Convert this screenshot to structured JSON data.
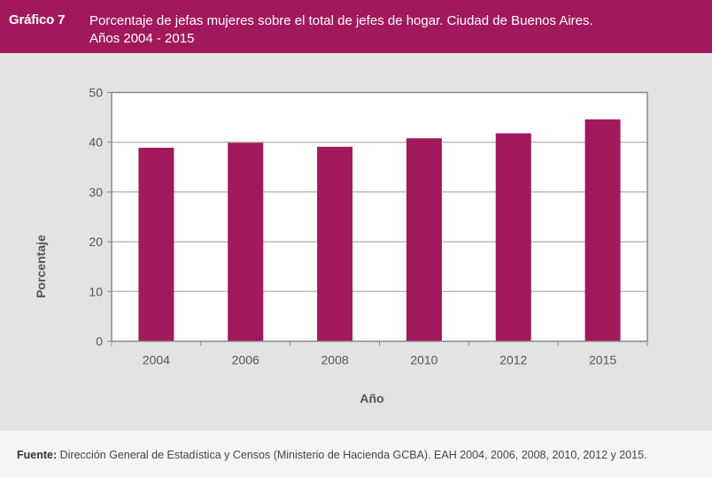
{
  "header": {
    "label": "Gráfico 7",
    "title_line1": "Porcentaje de jefas mujeres sobre el total de jefes de hogar. Ciudad de Buenos Aires.",
    "title_line2": "Años 2004 - 2015"
  },
  "footer": {
    "source_label": "Fuente:",
    "source_text": "Dirección General de Estadística y Censos (Ministerio de Hacienda GCBA). EAH 2004, 2006, 2008, 2010, 2012 y 2015."
  },
  "colors": {
    "bar": "#a2195b",
    "header_bg": "#a2195b",
    "plot_bg": "#ffffff",
    "grid": "#999999"
  },
  "chart_data": {
    "type": "bar",
    "title": "Porcentaje de jefas mujeres sobre el total de jefes de hogar. Ciudad de Buenos Aires. Años 2004 - 2015",
    "categories": [
      "2004",
      "2006",
      "2008",
      "2010",
      "2012",
      "2015"
    ],
    "values": [
      38.9,
      39.9,
      39.1,
      40.8,
      41.8,
      44.6
    ],
    "xlabel": "Año",
    "ylabel": "Porcentaje",
    "ylim": [
      0,
      50
    ],
    "yticks": [
      "0",
      "10",
      "20",
      "30",
      "40",
      "50"
    ],
    "grid": true,
    "legend": "none"
  }
}
